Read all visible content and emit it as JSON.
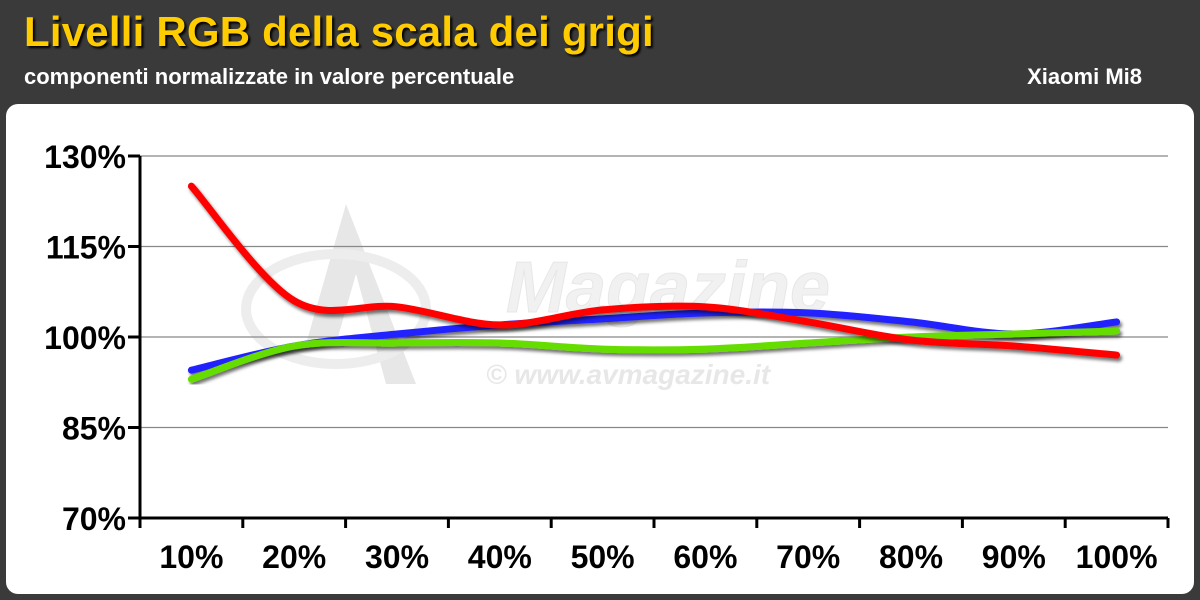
{
  "header": {
    "title": "Livelli RGB della scala dei grigi",
    "subtitle": "componenti normalizzate in valore percentuale",
    "device": "Xiaomi Mi8"
  },
  "watermark": {
    "brand": "Magazine",
    "site": "© www.avmagazine.it"
  },
  "chart_data": {
    "type": "line",
    "title": "Livelli RGB della scala dei grigi",
    "subtitle": "componenti normalizzate in valore percentuale",
    "categories": [
      "10%",
      "20%",
      "30%",
      "40%",
      "50%",
      "60%",
      "70%",
      "80%",
      "90%",
      "100%"
    ],
    "y_ticks": [
      "130%",
      "115%",
      "100%",
      "85%",
      "70%"
    ],
    "ylim": [
      70,
      130
    ],
    "grid": true,
    "series": [
      {
        "color": "#2020ff",
        "values": [
          94.5,
          98.5,
          100.5,
          102,
          103,
          104,
          104,
          102.5,
          100.5,
          102.5
        ]
      },
      {
        "color": "#66dd00",
        "values": [
          93,
          98.5,
          99,
          99,
          98,
          98,
          99,
          100,
          100.5,
          101
        ]
      },
      {
        "color": "#ff0000",
        "values": [
          125,
          106,
          105,
          102,
          104.5,
          105,
          102.5,
          99.5,
          98.5,
          97
        ]
      }
    ]
  }
}
